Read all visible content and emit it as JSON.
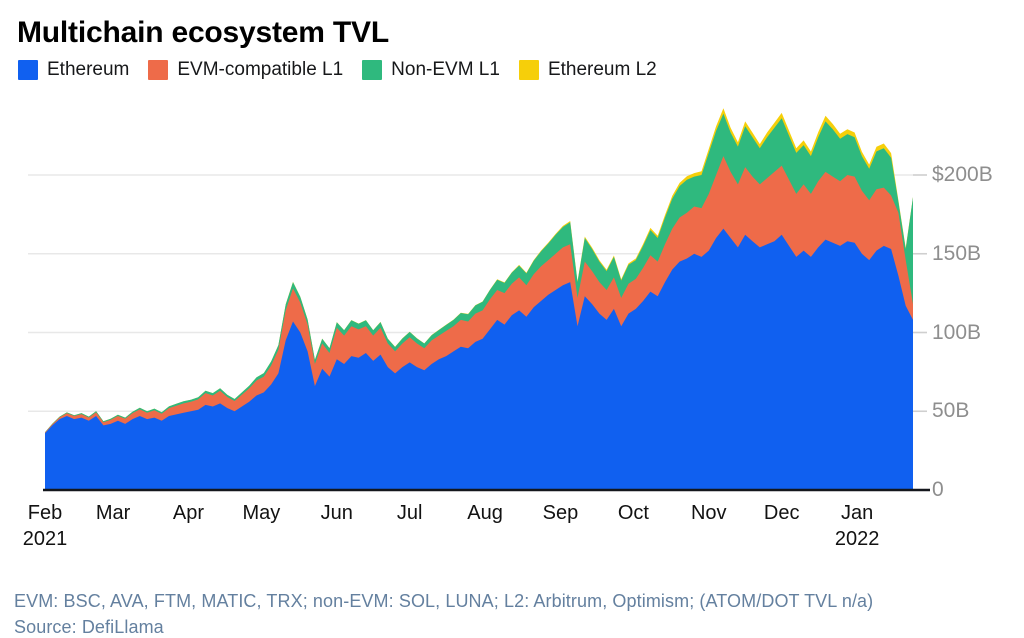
{
  "title": "Multichain ecosystem TVL",
  "legend": [
    {
      "label": "Ethereum",
      "color": "#1060f0"
    },
    {
      "label": "EVM-compatible L1",
      "color": "#ee6b49"
    },
    {
      "label": "Non-EVM L1",
      "color": "#2fb97e"
    },
    {
      "label": "Ethereum L2",
      "color": "#f6cf0a"
    }
  ],
  "footnote": "EVM: BSC, AVA, FTM, MATIC, TRX; non-EVM: SOL, LUNA; L2: Arbitrum, Optimism; (ATOM/DOT TVL n/a)",
  "source": "Source: DefiLlama",
  "colors": {
    "axis": "#14171c",
    "gridline": "#e8e8e8",
    "side_tick": "#cfcfcf",
    "y_label": "#8e8e8e",
    "x_label": "#121212",
    "footnote": "#64809f",
    "title": "#000000",
    "background": "#ffffff"
  },
  "chart_data": {
    "type": "area",
    "stacked": true,
    "title": "Multichain ecosystem TVL",
    "unit": "USD billions (TVL)",
    "x_start": "2021-02-01",
    "x_end": "2022-01-24",
    "step_days": 3,
    "span_days": 357,
    "grid": "horizontal",
    "legend_position": "top",
    "ylim": [
      0,
      250
    ],
    "x_ticks": [
      {
        "label": "Feb",
        "sublabel": "2021",
        "day": 0
      },
      {
        "label": "Mar",
        "day": 28
      },
      {
        "label": "Apr",
        "day": 59
      },
      {
        "label": "May",
        "day": 89
      },
      {
        "label": "Jun",
        "day": 120
      },
      {
        "label": "Jul",
        "day": 150
      },
      {
        "label": "Aug",
        "day": 181
      },
      {
        "label": "Sep",
        "day": 212
      },
      {
        "label": "Oct",
        "day": 242
      },
      {
        "label": "Nov",
        "day": 273
      },
      {
        "label": "Dec",
        "day": 303
      },
      {
        "label": "Jan",
        "sublabel": "2022",
        "day": 334
      }
    ],
    "y_ticks": [
      {
        "value": 0,
        "label": "0"
      },
      {
        "value": 50,
        "label": "50B"
      },
      {
        "value": 100,
        "label": "100B"
      },
      {
        "value": 150,
        "label": "150B"
      },
      {
        "value": 200,
        "label": "$200B"
      }
    ],
    "series": [
      {
        "name": "Ethereum",
        "color": "#1060f0",
        "values": [
          36,
          41,
          45,
          47,
          45,
          46,
          44,
          47,
          41,
          42,
          44,
          42,
          45,
          47,
          45,
          46,
          44,
          47,
          48,
          49,
          50,
          51,
          54,
          53,
          55,
          52,
          50,
          53,
          56,
          60,
          62,
          67,
          74,
          95,
          107,
          100,
          88,
          66,
          77,
          72,
          83,
          80,
          85,
          84,
          87,
          82,
          86,
          78,
          74,
          78,
          81,
          78,
          76,
          80,
          83,
          85,
          88,
          91,
          90,
          94,
          96,
          102,
          108,
          105,
          111,
          114,
          110,
          116,
          120,
          124,
          127,
          130,
          132,
          104,
          123,
          118,
          112,
          108,
          115,
          104,
          112,
          115,
          120,
          126,
          123,
          132,
          140,
          145,
          147,
          150,
          148,
          152,
          160,
          166,
          160,
          154,
          162,
          158,
          154,
          156,
          158,
          162,
          155,
          148,
          152,
          148,
          154,
          159,
          157,
          155,
          158,
          157,
          150,
          146,
          152,
          155,
          153,
          136,
          117,
          108
        ]
      },
      {
        "name": "EVM-compatible L1",
        "color": "#ee6b49",
        "values": [
          0.5,
          0.8,
          1.2,
          1.8,
          2,
          2.2,
          2,
          2.4,
          2,
          2.5,
          3,
          3.2,
          3.8,
          4.2,
          4,
          4.6,
          4.4,
          5,
          5.5,
          6,
          6,
          6.5,
          7.5,
          7,
          8,
          7,
          6.5,
          7.5,
          8.5,
          9.5,
          10,
          12,
          15,
          19,
          21,
          19,
          17,
          14,
          16,
          15,
          20,
          18,
          19,
          18,
          17,
          16,
          17,
          15,
          14,
          15,
          16,
          15,
          14,
          15,
          15,
          16,
          16,
          17,
          17,
          18,
          18,
          19,
          19,
          20,
          20,
          21,
          20,
          21,
          22,
          22,
          23,
          24,
          24,
          18,
          22,
          21,
          20,
          19,
          20,
          18,
          19,
          19,
          21,
          23,
          22,
          24,
          26,
          28,
          29,
          30,
          31,
          36,
          40,
          46,
          42,
          40,
          43,
          41,
          40,
          42,
          44,
          44,
          42,
          40,
          42,
          40,
          42,
          43,
          42,
          41,
          42,
          42,
          40,
          38,
          39,
          37,
          34,
          40,
          29,
          10
        ]
      },
      {
        "name": "Non-EVM L1",
        "color": "#2fb97e",
        "values": [
          0.2,
          0.3,
          0.4,
          0.5,
          0.5,
          0.6,
          0.6,
          0.7,
          0.6,
          0.7,
          0.8,
          0.8,
          0.9,
          1,
          1,
          1.1,
          1,
          1.1,
          1.2,
          1.3,
          1.3,
          1.4,
          1.5,
          1.5,
          1.6,
          1.4,
          1.3,
          1.5,
          1.7,
          2,
          2.2,
          2.6,
          3,
          3.8,
          4,
          3.6,
          3.2,
          2.6,
          3,
          3,
          3.5,
          3.4,
          3.8,
          3.6,
          3.8,
          3.4,
          3.6,
          3,
          2.8,
          3.2,
          3.4,
          3.2,
          3,
          3.3,
          3.6,
          3.8,
          4,
          4.4,
          4.6,
          5.2,
          5.5,
          6,
          6.5,
          6.5,
          7,
          7.5,
          7.5,
          8.5,
          9.5,
          10.5,
          12,
          13,
          14,
          10,
          15,
          14,
          13,
          12,
          13,
          11,
          12,
          12,
          14,
          16,
          15,
          17,
          19,
          20,
          21,
          19,
          21,
          26,
          28,
          27,
          25,
          24,
          26,
          25,
          23,
          26,
          28,
          30,
          28,
          26,
          25,
          24,
          28,
          32,
          30,
          27,
          26,
          25,
          22,
          20,
          24,
          25,
          24,
          7,
          7,
          68
        ]
      },
      {
        "name": "Ethereum L2",
        "color": "#f6cf0a",
        "values": [
          0,
          0,
          0,
          0,
          0,
          0,
          0,
          0,
          0,
          0,
          0,
          0,
          0,
          0,
          0,
          0,
          0,
          0,
          0,
          0,
          0,
          0,
          0,
          0,
          0,
          0,
          0,
          0,
          0,
          0,
          0,
          0,
          0,
          0.1,
          0.1,
          0.1,
          0.1,
          0.1,
          0.1,
          0.1,
          0.1,
          0.1,
          0.1,
          0.1,
          0.1,
          0.1,
          0.1,
          0.1,
          0.1,
          0.1,
          0.1,
          0.1,
          0.1,
          0.1,
          0.2,
          0.2,
          0.2,
          0.2,
          0.2,
          0.2,
          0.2,
          0.2,
          0.3,
          0.3,
          0.3,
          0.4,
          0.4,
          0.5,
          0.5,
          0.6,
          0.6,
          0.7,
          0.8,
          0.6,
          0.9,
          0.9,
          0.9,
          0.8,
          0.9,
          0.8,
          0.9,
          1,
          1.2,
          1.4,
          1.4,
          1.6,
          1.8,
          2,
          2.2,
          2.2,
          2.4,
          2.6,
          3,
          3.4,
          3,
          2.8,
          3,
          2.9,
          2.6,
          3,
          3.2,
          3.4,
          3.2,
          3,
          3,
          2.9,
          3.2,
          3.6,
          3.4,
          3.2,
          3.1,
          3,
          2.8,
          2.6,
          2.9,
          3,
          2.9,
          1,
          0.8,
          0
        ]
      }
    ]
  }
}
